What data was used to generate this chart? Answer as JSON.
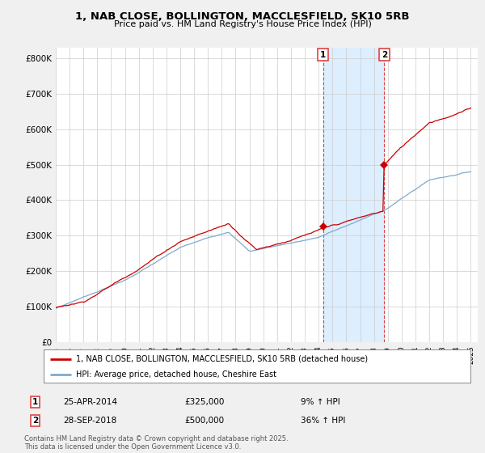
{
  "title": "1, NAB CLOSE, BOLLINGTON, MACCLESFIELD, SK10 5RB",
  "subtitle": "Price paid vs. HM Land Registry's House Price Index (HPI)",
  "legend_line1": "1, NAB CLOSE, BOLLINGTON, MACCLESFIELD, SK10 5RB (detached house)",
  "legend_line2": "HPI: Average price, detached house, Cheshire East",
  "annotation1_date": "25-APR-2014",
  "annotation1_price": "£325,000",
  "annotation1_hpi": "9% ↑ HPI",
  "annotation1_year": 2014.32,
  "annotation1_value": 325000,
  "annotation2_date": "28-SEP-2018",
  "annotation2_price": "£500,000",
  "annotation2_hpi": "36% ↑ HPI",
  "annotation2_year": 2018.75,
  "annotation2_value": 500000,
  "line1_color": "#cc0000",
  "line2_color": "#7faacc",
  "shaded_color": "#ddeeff",
  "vline_color": "#dd4444",
  "background_color": "#f0f0f0",
  "plot_bg_color": "#ffffff",
  "ylim": [
    0,
    830000
  ],
  "yticks": [
    0,
    100000,
    200000,
    300000,
    400000,
    500000,
    600000,
    700000,
    800000
  ],
  "ytick_labels": [
    "£0",
    "£100K",
    "£200K",
    "£300K",
    "£400K",
    "£500K",
    "£600K",
    "£700K",
    "£800K"
  ],
  "footer": "Contains HM Land Registry data © Crown copyright and database right 2025.\nThis data is licensed under the Open Government Licence v3.0.",
  "start_year": 1995,
  "end_year": 2025
}
